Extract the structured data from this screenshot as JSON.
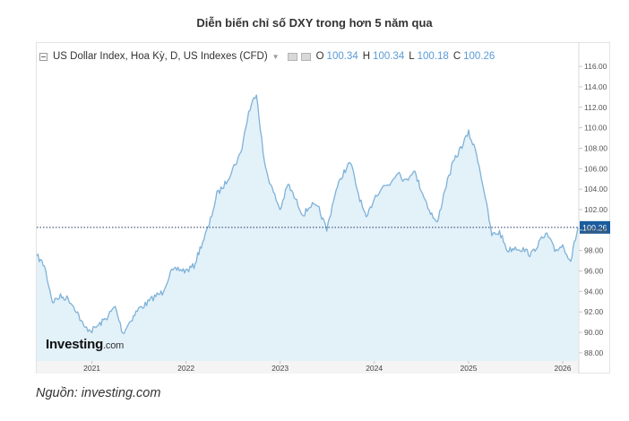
{
  "page": {
    "title": "Diễn biến chỉ số DXY trong hơn 5 năm qua",
    "source": "Nguồn: investing.com"
  },
  "legend": {
    "instrument": "US Dollar Index, Hoa Kỳ, D, US Indexes (CFD)",
    "ohlc": [
      {
        "key": "O",
        "value": "100.34"
      },
      {
        "key": "H",
        "value": "100.34"
      },
      {
        "key": "L",
        "value": "100.18"
      },
      {
        "key": "C",
        "value": "100.26"
      }
    ]
  },
  "logo": {
    "main": "Investing",
    "suffix": ".com"
  },
  "colors": {
    "line": "#7fb2d8",
    "area": "#e3f1f9",
    "price_badge": "#1a5c9e",
    "price_line": "#1f3a66"
  },
  "chart_data": {
    "type": "area",
    "title": "Diễn biến chỉ số DXY trong hơn 5 năm qua",
    "xlabel": "",
    "ylabel": "",
    "ylim": [
      87.2,
      118.2
    ],
    "x_ticks": [
      "2021",
      "2022",
      "2023",
      "2024",
      "2025",
      "2026"
    ],
    "y_ticks": [
      "88.00",
      "90.00",
      "92.00",
      "94.00",
      "96.00",
      "98.00",
      "100.00",
      "102.00",
      "104.00",
      "106.00",
      "108.00",
      "110.00",
      "112.00",
      "114.00",
      "116.00"
    ],
    "last_price": 100.26,
    "last_price_label": "100.26",
    "grid": false,
    "series": [
      {
        "x": [
          "2020-06-01",
          "2020-07-01",
          "2020-08-01",
          "2020-09-01",
          "2020-10-01",
          "2020-11-01",
          "2020-12-01",
          "2021-01-01",
          "2021-02-01",
          "2021-03-01",
          "2021-04-01",
          "2021-05-01",
          "2021-06-01",
          "2021-07-01",
          "2021-08-01",
          "2021-09-01",
          "2021-10-01",
          "2021-11-01",
          "2021-12-01",
          "2022-01-01",
          "2022-02-01",
          "2022-03-01",
          "2022-04-01",
          "2022-05-01",
          "2022-06-01",
          "2022-07-01",
          "2022-08-01",
          "2022-09-01",
          "2022-10-01",
          "2022-11-01",
          "2022-12-01",
          "2023-01-01",
          "2023-02-01",
          "2023-03-01",
          "2023-04-01",
          "2023-05-01",
          "2023-06-01",
          "2023-07-01",
          "2023-08-01",
          "2023-09-01",
          "2023-10-01",
          "2023-11-01",
          "2023-12-01",
          "2024-01-01",
          "2024-02-01",
          "2024-03-01",
          "2024-04-01",
          "2024-05-01",
          "2024-06-01",
          "2024-07-01",
          "2024-08-01",
          "2024-09-01",
          "2024-10-01",
          "2024-11-01",
          "2024-12-01",
          "2025-01-01",
          "2025-02-01",
          "2025-03-01",
          "2025-04-01",
          "2025-05-01",
          "2025-06-01",
          "2025-07-01",
          "2025-08-01",
          "2025-09-01",
          "2025-10-01",
          "2025-11-01",
          "2025-12-01",
          "2026-01-01",
          "2026-02-01",
          "2026-03-01"
        ],
        "values": [
          97.5,
          96.5,
          93.0,
          93.5,
          93.3,
          92.2,
          90.5,
          90.2,
          90.8,
          91.5,
          92.5,
          89.9,
          91.2,
          92.3,
          92.8,
          93.5,
          93.9,
          95.8,
          96.2,
          96.0,
          96.5,
          98.5,
          100.5,
          103.5,
          104.5,
          106.0,
          107.5,
          111.5,
          113.5,
          106.5,
          104.0,
          102.0,
          104.5,
          103.0,
          101.5,
          102.5,
          102.0,
          100.0,
          103.5,
          105.5,
          106.6,
          103.5,
          101.0,
          103.2,
          104.2,
          104.5,
          105.8,
          104.7,
          105.9,
          104.0,
          102.0,
          100.6,
          104.0,
          106.5,
          108.0,
          109.5,
          107.5,
          104.0,
          99.5,
          99.8,
          98.0,
          98.3,
          98.1,
          97.6,
          98.8,
          99.6,
          98.0,
          98.5,
          97.0,
          100.26
        ]
      }
    ]
  }
}
